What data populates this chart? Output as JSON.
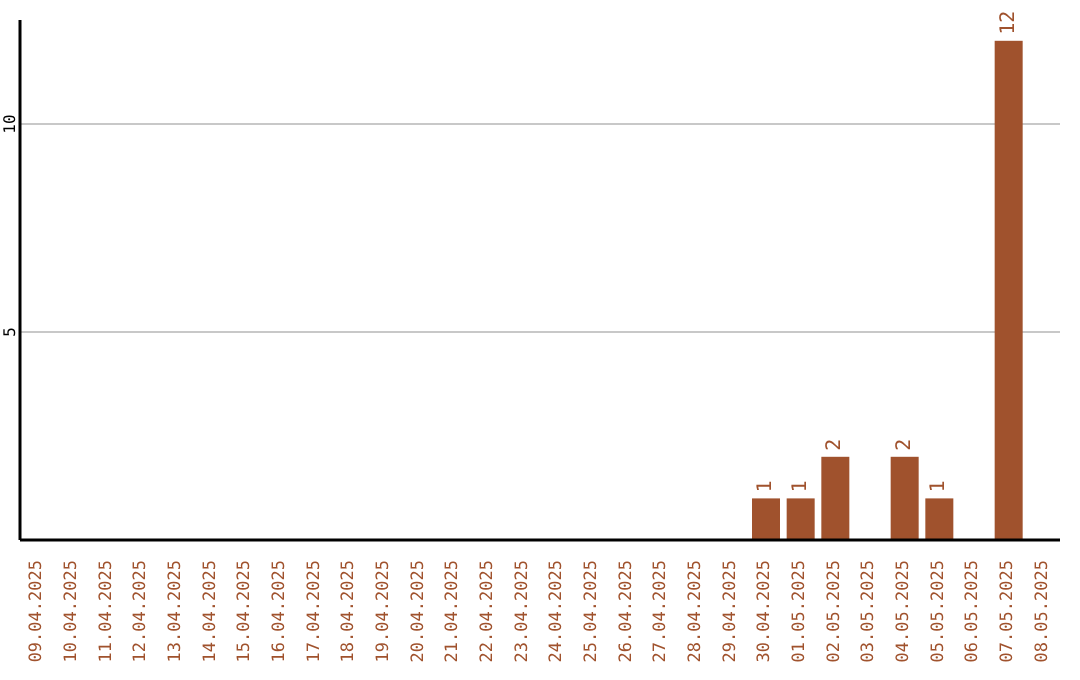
{
  "chart_data": {
    "type": "bar",
    "categories": [
      "09.04.2025",
      "10.04.2025",
      "11.04.2025",
      "12.04.2025",
      "13.04.2025",
      "14.04.2025",
      "15.04.2025",
      "16.04.2025",
      "17.04.2025",
      "18.04.2025",
      "19.04.2025",
      "20.04.2025",
      "21.04.2025",
      "22.04.2025",
      "23.04.2025",
      "24.04.2025",
      "25.04.2025",
      "26.04.2025",
      "27.04.2025",
      "28.04.2025",
      "29.04.2025",
      "30.04.2025",
      "01.05.2025",
      "02.05.2025",
      "03.05.2025",
      "04.05.2025",
      "05.05.2025",
      "06.05.2025",
      "07.05.2025",
      "08.05.2025"
    ],
    "values": [
      0,
      0,
      0,
      0,
      0,
      0,
      0,
      0,
      0,
      0,
      0,
      0,
      0,
      0,
      0,
      0,
      0,
      0,
      0,
      0,
      0,
      1,
      1,
      2,
      0,
      2,
      1,
      0,
      12,
      0
    ],
    "value_labels": [
      null,
      null,
      null,
      null,
      null,
      null,
      null,
      null,
      null,
      null,
      null,
      null,
      null,
      null,
      null,
      null,
      null,
      null,
      null,
      null,
      null,
      "1",
      "1",
      "2",
      null,
      "2",
      "1",
      null,
      "12",
      null
    ],
    "color": "#a0522d",
    "ylim": [
      0,
      12.5
    ],
    "yticks": [
      5,
      10
    ],
    "grid": "y",
    "legend": false
  }
}
